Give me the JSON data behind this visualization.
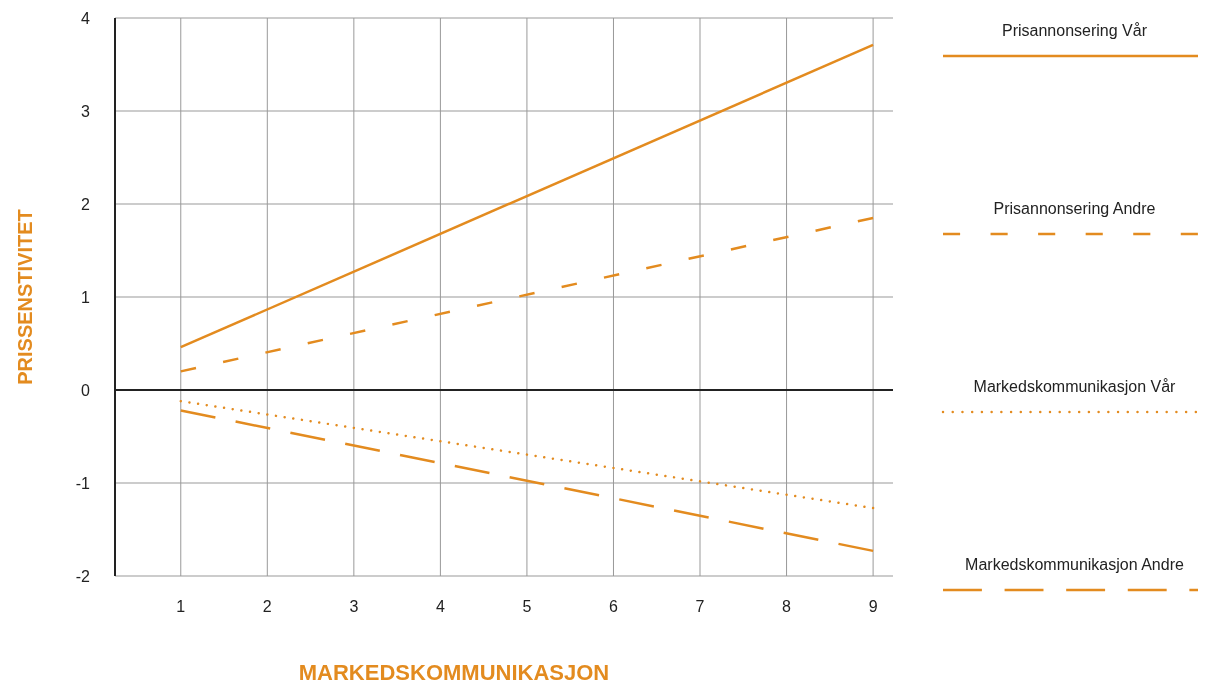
{
  "chart_data": {
    "type": "line",
    "xlabel": "MARKEDSKOMMUNIKASJON",
    "ylabel": "PRISSENSTIVITET",
    "x": [
      1,
      9
    ],
    "xlim": [
      0.24,
      9.23
    ],
    "xticks": [
      1,
      2,
      3,
      4,
      5,
      6,
      7,
      8,
      9
    ],
    "ylim": [
      -2,
      4
    ],
    "yticks": [
      -2,
      -1,
      0,
      1,
      2,
      3,
      4
    ],
    "grid": true,
    "legend": "right",
    "marker": "none",
    "series": [
      {
        "name": "Prisannonsering Vår",
        "color": "#e38b1f",
        "line_style": "solid",
        "values": [
          0.46,
          3.71
        ]
      },
      {
        "name": "Prisannonsering Andre",
        "color": "#e38b1f",
        "line_style": "dashed",
        "values": [
          0.2,
          1.85
        ]
      },
      {
        "name": "Markedskommunikasjon Vår",
        "color": "#e38b1f",
        "line_style": "dotted",
        "values": [
          -0.12,
          -1.27
        ]
      },
      {
        "name": "Markedskommunikasjon Andre",
        "color": "#e38b1f",
        "line_style": "dashed",
        "values": [
          -0.22,
          -1.73
        ]
      }
    ]
  }
}
